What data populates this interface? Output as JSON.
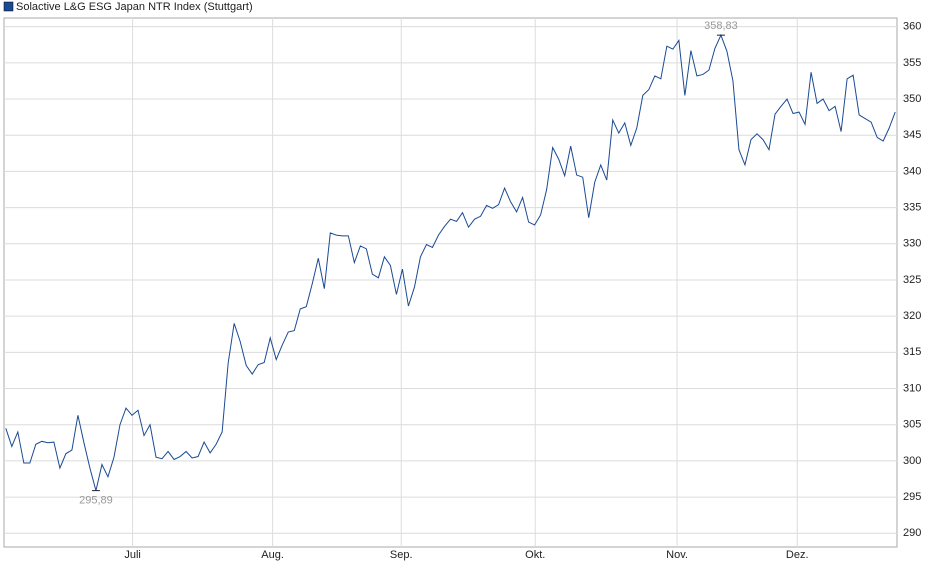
{
  "chart_data": {
    "type": "line",
    "xlim": [
      -0.3,
      148.3
    ],
    "xticks": [
      {
        "value": 21.1,
        "label": "Juli"
      },
      {
        "value": 44.4,
        "label": "Aug."
      },
      {
        "value": 65.8,
        "label": "Sep."
      },
      {
        "value": 88.1,
        "label": "Okt."
      },
      {
        "value": 111.7,
        "label": "Nov."
      },
      {
        "value": 131.7,
        "label": "Dez."
      }
    ],
    "ylim": [
      288.1,
      361.2
    ],
    "yticks": [
      290,
      295,
      300,
      305,
      310,
      315,
      320,
      325,
      330,
      335,
      340,
      345,
      350,
      355,
      360
    ],
    "grid": true,
    "series": [
      {
        "name": "Solactive L&G ESG Japan NTR Index (Stuttgart)",
        "color": "#1a4a94",
        "values": [
          304.5,
          302,
          304,
          299.7,
          299.7,
          302.3,
          302.7,
          302.5,
          302.6,
          299,
          301,
          301.5,
          306.3,
          302.5,
          299,
          295.89,
          299.5,
          297.8,
          300.5,
          305,
          307.3,
          306.3,
          307,
          303.5,
          305,
          300.5,
          300.3,
          301.3,
          300.2,
          300.6,
          301.3,
          300.4,
          300.6,
          302.6,
          301.1,
          302.3,
          304,
          313.5,
          319,
          316.5,
          313.2,
          312,
          313.3,
          313.6,
          317,
          314,
          316,
          317.8,
          318,
          321,
          321.3,
          324.5,
          328,
          323.8,
          331.5,
          331.2,
          331.1,
          331.1,
          327.4,
          329.7,
          329.3,
          325.8,
          325.3,
          328.2,
          327,
          323,
          326.5,
          321.4,
          324,
          328.2,
          329.9,
          329.5,
          331.2,
          332.4,
          333.4,
          333.1,
          334.3,
          332.3,
          333.4,
          333.8,
          335.3,
          334.9,
          335.4,
          337.7,
          335.8,
          334.4,
          336.4,
          333,
          332.6,
          334,
          337.5,
          343.3,
          341.7,
          339.4,
          343.5,
          339.5,
          339.2,
          333.6,
          338.5,
          340.9,
          338.8,
          347.1,
          345.3,
          346.7,
          343.6,
          346,
          350.5,
          351.3,
          353.2,
          352.8,
          357.3,
          356.9,
          358.1,
          350.5,
          356.7,
          353.2,
          353.4,
          354,
          357,
          358.83,
          356.6,
          352.5,
          343,
          340.9,
          344.4,
          345.2,
          344.4,
          343,
          347.9,
          349,
          350,
          348,
          348.2,
          346.5,
          353.7,
          349.4,
          350,
          348.4,
          349,
          345.5,
          352.8,
          353.3,
          347.8,
          347.3,
          346.8,
          344.7,
          344.2,
          346,
          348.2
        ]
      }
    ],
    "annotations": [
      {
        "label": "358,83",
        "value": 358.83,
        "position": "above"
      },
      {
        "label": "295,89",
        "value": 295.89,
        "position": "below"
      }
    ]
  }
}
